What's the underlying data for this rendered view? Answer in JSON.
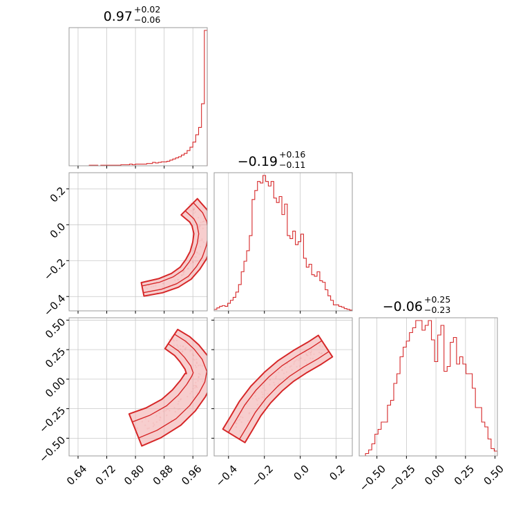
{
  "chart_data": {
    "type": "corner",
    "colors": {
      "series": "#d62728",
      "fill": "#f1a6a6",
      "grid": "#c8c8c8",
      "frame": "#9a9a9a"
    },
    "grid": true,
    "parameters": [
      {
        "median": "0.97",
        "plus": "+0.02",
        "minus": "−0.06",
        "range": [
          0.615,
          1.0
        ],
        "ticks": [
          0.64,
          0.72,
          0.8,
          0.88,
          0.96
        ],
        "tick_labels": [
          "0.64",
          "0.72",
          "0.80",
          "0.88",
          "0.96"
        ]
      },
      {
        "median": "−0.19",
        "plus": "+0.16",
        "minus": "−0.11",
        "range": [
          -0.48,
          0.29
        ],
        "ticks": [
          -0.4,
          -0.2,
          0.0,
          0.2
        ],
        "tick_labels": [
          "−0.4",
          "−0.2",
          "0.0",
          "0.2"
        ]
      },
      {
        "median": "−0.06",
        "plus": "+0.25",
        "minus": "−0.23",
        "range": [
          -0.65,
          0.52
        ],
        "ticks": [
          -0.5,
          -0.25,
          0.0,
          0.25,
          0.5
        ],
        "tick_labels": [
          "−0.50",
          "−0.25",
          "0.00",
          "0.25",
          "0.50"
        ]
      }
    ],
    "histograms": [
      {
        "param": 0,
        "bins": [
          0.615,
          1.0
        ],
        "counts": [
          0,
          0,
          0,
          0,
          0,
          0,
          0,
          1,
          1,
          1,
          0,
          1,
          1,
          1,
          1,
          1,
          1,
          1,
          2,
          2,
          2,
          3,
          2,
          3,
          3,
          3,
          3,
          4,
          4,
          6,
          5,
          6,
          7,
          7,
          8,
          10,
          12,
          14,
          16,
          19,
          22,
          27,
          33,
          42,
          55,
          68,
          110,
          240
        ]
      },
      {
        "param": 1,
        "bins": [
          -0.48,
          0.29
        ],
        "counts": [
          2,
          4,
          6,
          7,
          6,
          10,
          14,
          18,
          25,
          35,
          52,
          66,
          80,
          100,
          148,
          160,
          172,
          170,
          180,
          172,
          166,
          172,
          150,
          144,
          152,
          128,
          142,
          100,
          96,
          106,
          88,
          92,
          102,
          70,
          58,
          62,
          48,
          46,
          52,
          40,
          38,
          28,
          20,
          14,
          8,
          8,
          6,
          5,
          3,
          2,
          1
        ]
      },
      {
        "param": 2,
        "bins": [
          -0.65,
          0.52
        ],
        "counts": [
          0,
          0,
          2,
          5,
          10,
          18,
          22,
          28,
          28,
          42,
          46,
          60,
          68,
          82,
          90,
          95,
          102,
          106,
          112,
          112,
          104,
          108,
          112,
          96,
          78,
          100,
          108,
          70,
          74,
          94,
          98,
          76,
          82,
          76,
          68,
          68,
          56,
          40,
          40,
          28,
          24,
          14,
          6,
          4
        ]
      }
    ],
    "pairs": [
      {
        "x_param": 0,
        "y_param": 1,
        "ridge": [
          [
            0.82,
            -0.36
          ],
          [
            0.87,
            -0.34
          ],
          [
            0.91,
            -0.31
          ],
          [
            0.94,
            -0.27
          ],
          [
            0.96,
            -0.22
          ],
          [
            0.975,
            -0.17
          ],
          [
            0.985,
            -0.11
          ],
          [
            0.99,
            -0.05
          ],
          [
            0.985,
            0.01
          ],
          [
            0.975,
            0.05
          ],
          [
            0.96,
            0.08
          ],
          [
            0.95,
            0.1
          ]
        ],
        "width": [
          0.012,
          0.02
        ]
      },
      {
        "x_param": 0,
        "y_param": 2,
        "ridge": [
          [
            0.8,
            -0.43
          ],
          [
            0.85,
            -0.37
          ],
          [
            0.9,
            -0.28
          ],
          [
            0.935,
            -0.18
          ],
          [
            0.96,
            -0.08
          ],
          [
            0.975,
            0.0
          ],
          [
            0.98,
            0.06
          ],
          [
            0.97,
            0.14
          ],
          [
            0.95,
            0.22
          ],
          [
            0.93,
            0.28
          ],
          [
            0.9,
            0.34
          ]
        ],
        "width": [
          0.03,
          0.02
        ]
      },
      {
        "x_param": 1,
        "y_param": 2,
        "ridge": [
          [
            -0.37,
            -0.48
          ],
          [
            -0.33,
            -0.38
          ],
          [
            -0.28,
            -0.25
          ],
          [
            -0.22,
            -0.13
          ],
          [
            -0.15,
            -0.02
          ],
          [
            -0.08,
            0.07
          ],
          [
            0.0,
            0.15
          ],
          [
            0.08,
            0.22
          ],
          [
            0.14,
            0.28
          ]
        ],
        "width": [
          0.045,
          0.045
        ]
      }
    ]
  }
}
